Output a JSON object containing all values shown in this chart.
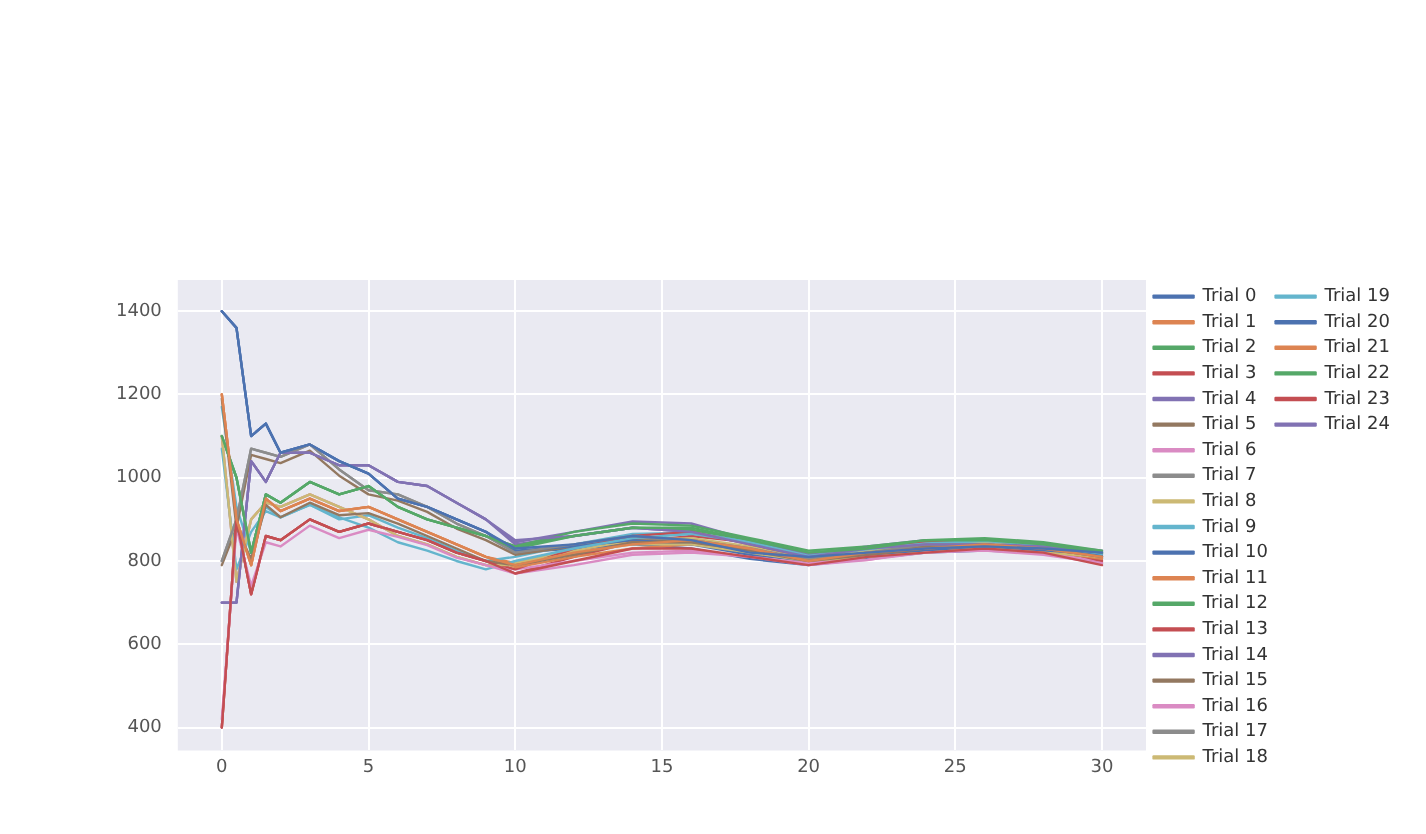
{
  "chart_data": {
    "type": "line",
    "x": [
      0,
      0.5,
      1,
      1.5,
      2,
      3,
      4,
      5,
      6,
      7,
      8,
      9,
      10,
      12,
      14,
      16,
      18,
      20,
      22,
      24,
      26,
      28,
      30
    ],
    "xlim": [
      -1.5,
      31.5
    ],
    "xticks": [
      0,
      5,
      10,
      15,
      20,
      25,
      30
    ],
    "ylim": [
      345,
      1475
    ],
    "yticks": [
      400,
      600,
      800,
      1000,
      1200,
      1400
    ],
    "grid": true,
    "legend": "right",
    "marker": "none",
    "line_style": "solid",
    "series": [
      {
        "name": "Trial 0",
        "color": "#4c72b0",
        "values": [
          1400,
          1360,
          1100,
          1130,
          1060,
          1080,
          1040,
          1010,
          950,
          930,
          900,
          870,
          830,
          840,
          860,
          850,
          820,
          810,
          820,
          830,
          835,
          830,
          820
        ]
      },
      {
        "name": "Trial 1",
        "color": "#dd8452",
        "values": [
          1200,
          900,
          790,
          950,
          920,
          950,
          920,
          930,
          900,
          870,
          840,
          810,
          790,
          820,
          840,
          850,
          830,
          800,
          820,
          830,
          840,
          830,
          810
        ]
      },
      {
        "name": "Trial 2",
        "color": "#55a868",
        "values": [
          1100,
          1000,
          820,
          960,
          940,
          990,
          960,
          980,
          930,
          900,
          880,
          860,
          830,
          860,
          880,
          880,
          850,
          820,
          830,
          850,
          850,
          840,
          820
        ]
      },
      {
        "name": "Trial 3",
        "color": "#c44e52",
        "values": [
          400,
          900,
          720,
          860,
          850,
          900,
          870,
          890,
          870,
          850,
          820,
          800,
          770,
          800,
          830,
          830,
          810,
          790,
          810,
          820,
          830,
          820,
          790
        ]
      },
      {
        "name": "Trial 4",
        "color": "#8172b3",
        "values": [
          700,
          700,
          1040,
          990,
          1060,
          1060,
          1030,
          1030,
          990,
          980,
          940,
          900,
          850,
          860,
          880,
          870,
          840,
          810,
          830,
          840,
          840,
          835,
          820
        ]
      },
      {
        "name": "Trial 5",
        "color": "#937860",
        "values": [
          1190,
          880,
          805,
          935,
          905,
          940,
          910,
          915,
          890,
          860,
          830,
          800,
          790,
          815,
          845,
          845,
          825,
          800,
          815,
          830,
          840,
          830,
          810
        ]
      },
      {
        "name": "Trial 6",
        "color": "#da8bc3",
        "values": [
          420,
          880,
          740,
          845,
          835,
          885,
          855,
          875,
          858,
          838,
          808,
          790,
          770,
          790,
          815,
          820,
          810,
          795,
          803,
          820,
          825,
          815,
          795
        ]
      },
      {
        "name": "Trial 7",
        "color": "#8c8c8c",
        "values": [
          800,
          900,
          1070,
          1060,
          1050,
          1080,
          1020,
          970,
          960,
          930,
          890,
          860,
          820,
          840,
          860,
          850,
          830,
          800,
          820,
          840,
          840,
          830,
          810
        ]
      },
      {
        "name": "Trial 8",
        "color": "#ccb974",
        "values": [
          1100,
          750,
          900,
          940,
          930,
          960,
          930,
          900,
          860,
          840,
          810,
          790,
          790,
          820,
          840,
          840,
          820,
          800,
          810,
          820,
          830,
          820,
          810
        ]
      },
      {
        "name": "Trial 9",
        "color": "#64b5cd",
        "values": [
          1070,
          780,
          870,
          920,
          905,
          935,
          905,
          880,
          845,
          825,
          800,
          780,
          800,
          830,
          855,
          865,
          845,
          812,
          828,
          842,
          848,
          838,
          817
        ]
      },
      {
        "name": "Trial 10",
        "color": "#4c72b0",
        "values": [
          1400,
          1360,
          1100,
          1130,
          1060,
          1080,
          1040,
          1010,
          950,
          930,
          900,
          870,
          825,
          835,
          850,
          840,
          815,
          800,
          815,
          825,
          830,
          825,
          815
        ]
      },
      {
        "name": "Trial 11",
        "color": "#dd8452",
        "values": [
          1200,
          900,
          790,
          950,
          920,
          950,
          920,
          930,
          900,
          870,
          840,
          810,
          785,
          810,
          830,
          840,
          825,
          795,
          810,
          825,
          835,
          825,
          805
        ]
      },
      {
        "name": "Trial 12",
        "color": "#55a868",
        "values": [
          1100,
          1000,
          820,
          960,
          940,
          990,
          960,
          980,
          930,
          900,
          880,
          860,
          835,
          870,
          890,
          885,
          855,
          825,
          835,
          850,
          855,
          845,
          825
        ]
      },
      {
        "name": "Trial 13",
        "color": "#c44e52",
        "values": [
          400,
          900,
          720,
          860,
          850,
          900,
          870,
          890,
          870,
          850,
          820,
          800,
          780,
          830,
          860,
          870,
          840,
          810,
          830,
          845,
          850,
          835,
          800
        ]
      },
      {
        "name": "Trial 14",
        "color": "#8172b3",
        "values": [
          700,
          700,
          1040,
          990,
          1060,
          1060,
          1030,
          1030,
          990,
          980,
          940,
          900,
          845,
          870,
          895,
          890,
          850,
          815,
          835,
          850,
          850,
          840,
          825
        ]
      },
      {
        "name": "Trial 15",
        "color": "#937860",
        "values": [
          790,
          880,
          1055,
          1045,
          1035,
          1065,
          1005,
          960,
          945,
          918,
          878,
          850,
          815,
          835,
          850,
          845,
          825,
          800,
          815,
          835,
          835,
          825,
          805
        ]
      },
      {
        "name": "Trial 16",
        "color": "#da8bc3",
        "values": [
          1100,
          750,
          900,
          940,
          930,
          960,
          930,
          900,
          860,
          840,
          810,
          790,
          780,
          800,
          820,
          825,
          810,
          790,
          802,
          825,
          830,
          820,
          800
        ]
      },
      {
        "name": "Trial 17",
        "color": "#8c8c8c",
        "values": [
          800,
          900,
          1070,
          1060,
          1050,
          1080,
          1020,
          970,
          960,
          930,
          890,
          860,
          820,
          835,
          855,
          850,
          830,
          805,
          820,
          835,
          840,
          830,
          812
        ]
      },
      {
        "name": "Trial 18",
        "color": "#ccb974",
        "values": [
          1100,
          750,
          900,
          940,
          930,
          960,
          930,
          900,
          860,
          840,
          810,
          790,
          795,
          825,
          850,
          855,
          835,
          810,
          825,
          840,
          845,
          835,
          818
        ]
      },
      {
        "name": "Trial 19",
        "color": "#64b5cd",
        "values": [
          1170,
          930,
          820,
          930,
          905,
          935,
          900,
          910,
          880,
          855,
          825,
          800,
          810,
          840,
          865,
          868,
          845,
          815,
          832,
          846,
          851,
          840,
          818
        ]
      },
      {
        "name": "Trial 20",
        "color": "#4c72b0",
        "values": [
          1400,
          1360,
          1100,
          1130,
          1060,
          1080,
          1040,
          1010,
          950,
          930,
          900,
          870,
          820,
          830,
          840,
          830,
          805,
          790,
          805,
          820,
          825,
          820,
          810
        ]
      },
      {
        "name": "Trial 21",
        "color": "#dd8452",
        "values": [
          1200,
          900,
          790,
          950,
          920,
          950,
          920,
          930,
          900,
          870,
          840,
          810,
          795,
          825,
          845,
          850,
          830,
          800,
          815,
          830,
          838,
          828,
          808
        ]
      },
      {
        "name": "Trial 22",
        "color": "#55a868",
        "values": [
          1100,
          1000,
          820,
          960,
          940,
          990,
          960,
          980,
          930,
          900,
          880,
          860,
          835,
          860,
          880,
          875,
          850,
          820,
          830,
          848,
          852,
          842,
          822
        ]
      },
      {
        "name": "Trial 23",
        "color": "#c44e52",
        "values": [
          400,
          900,
          720,
          860,
          850,
          900,
          870,
          890,
          870,
          850,
          820,
          800,
          770,
          810,
          845,
          860,
          845,
          805,
          825,
          840,
          845,
          830,
          795
        ]
      },
      {
        "name": "Trial 24",
        "color": "#8172b3",
        "values": [
          700,
          700,
          1040,
          990,
          1060,
          1060,
          1030,
          1030,
          990,
          980,
          940,
          900,
          840,
          860,
          880,
          870,
          845,
          815,
          830,
          845,
          848,
          838,
          822
        ]
      }
    ]
  }
}
